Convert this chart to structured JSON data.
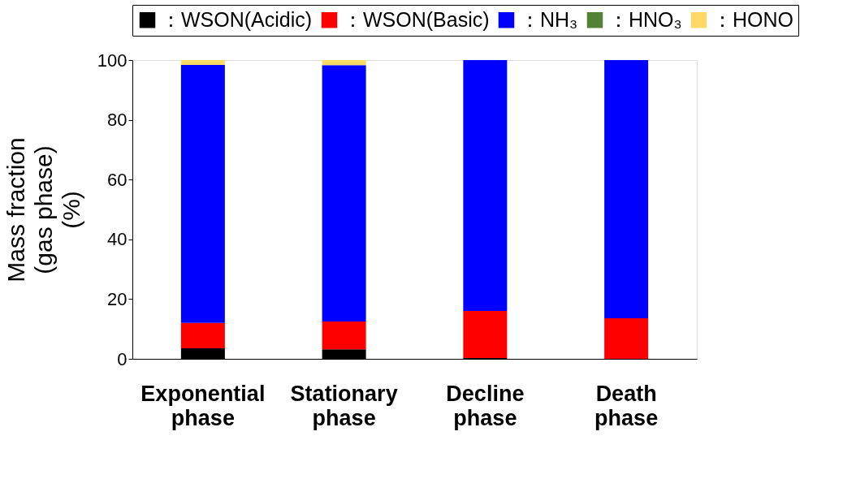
{
  "chart_data": {
    "type": "bar",
    "stacked": true,
    "categories": [
      "Exponential phase",
      "Stationary phase",
      "Decline phase",
      "Death phase"
    ],
    "series": [
      {
        "name": "：WSON(Acidic)",
        "color": "#000000",
        "values": [
          3.5,
          3.2,
          0.3,
          0
        ]
      },
      {
        "name": "：WSON(Basic)",
        "color": "#ff0000",
        "values": [
          8.5,
          9.3,
          15.7,
          13.6
        ]
      },
      {
        "name": "：NH₃",
        "color": "#0000ff",
        "values": [
          86.4,
          85.8,
          84.0,
          86.4
        ]
      },
      {
        "name": "：HNO₃",
        "color": "#538135",
        "values": [
          0,
          0,
          0,
          0
        ]
      },
      {
        "name": "：HONO",
        "color": "#ffd966",
        "values": [
          1.6,
          1.7,
          0,
          0
        ]
      }
    ],
    "ylabel": "Mass fraction\n(gas phase)\n(%)",
    "ylim": [
      0,
      100
    ],
    "yticks": [
      0,
      20,
      40,
      60,
      80,
      100
    ],
    "grid": false,
    "legend": "top"
  }
}
